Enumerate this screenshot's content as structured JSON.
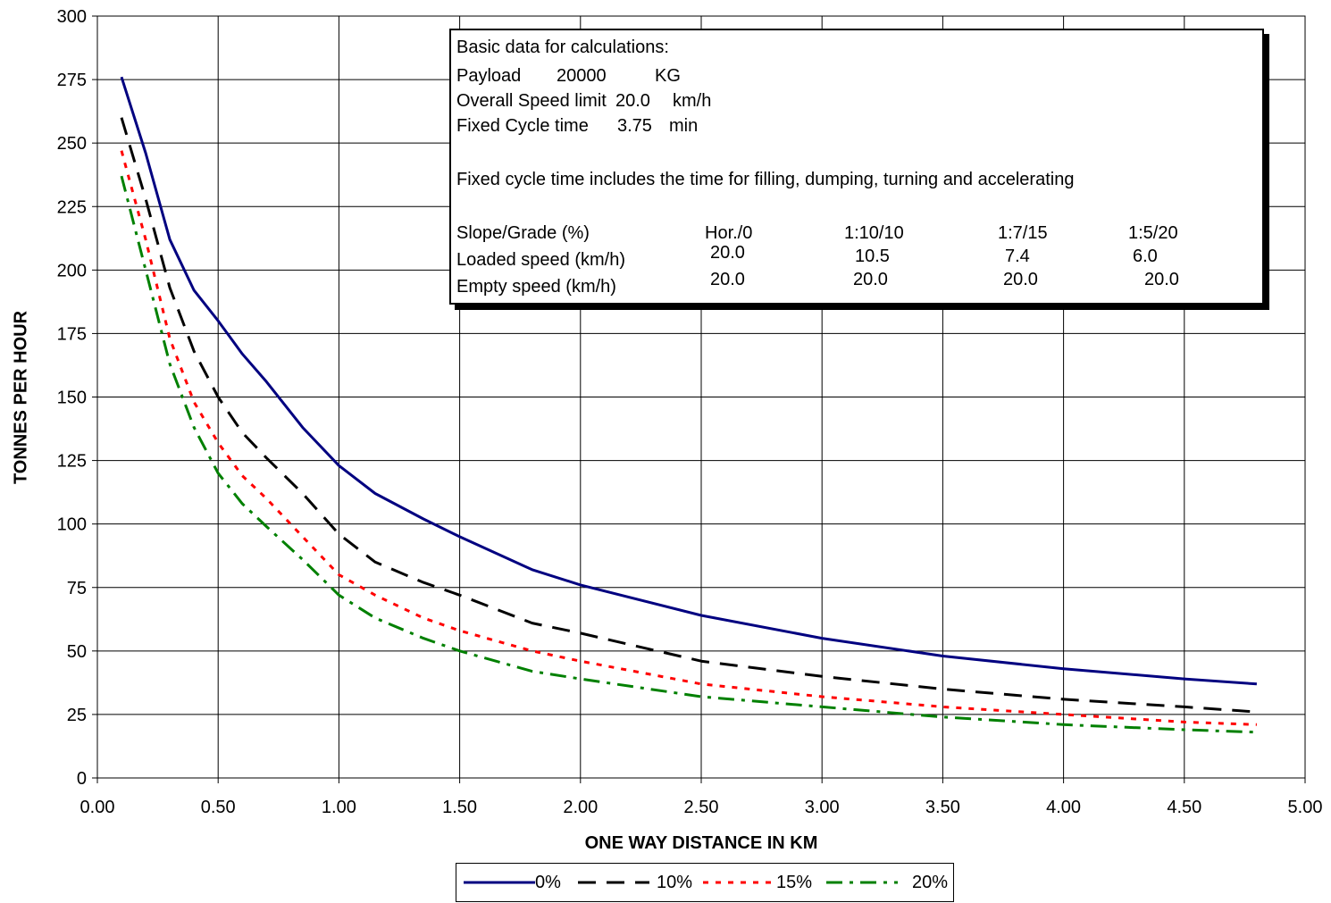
{
  "chart_data": {
    "type": "line",
    "xlabel": "ONE WAY DISTANCE IN KM",
    "ylabel": "TONNES PER HOUR",
    "xlim": [
      0,
      5
    ],
    "ylim": [
      0,
      300
    ],
    "xticks": [
      "0.00",
      "0.50",
      "1.00",
      "1.50",
      "2.00",
      "2.50",
      "3.00",
      "3.50",
      "4.00",
      "4.50",
      "5.00"
    ],
    "yticks": [
      "0",
      "25",
      "50",
      "75",
      "100",
      "125",
      "150",
      "175",
      "200",
      "225",
      "250",
      "275",
      "300"
    ],
    "grid": true,
    "legend_position": "bottom",
    "series": [
      {
        "name": "0%",
        "color": "#000080",
        "dash": "solid",
        "points": [
          [
            0.1,
            276
          ],
          [
            0.2,
            246
          ],
          [
            0.3,
            212
          ],
          [
            0.4,
            192
          ],
          [
            0.5,
            180
          ],
          [
            0.6,
            167
          ],
          [
            0.7,
            156
          ],
          [
            0.85,
            138
          ],
          [
            1.0,
            123
          ],
          [
            1.15,
            112
          ],
          [
            1.35,
            102
          ],
          [
            1.5,
            95
          ],
          [
            1.8,
            82
          ],
          [
            2.0,
            76
          ],
          [
            2.5,
            64
          ],
          [
            3.0,
            55
          ],
          [
            3.5,
            48
          ],
          [
            4.0,
            43
          ],
          [
            4.5,
            39
          ],
          [
            4.8,
            37
          ]
        ]
      },
      {
        "name": "10%",
        "color": "#000000",
        "dash": "long-dash",
        "points": [
          [
            0.1,
            260
          ],
          [
            0.2,
            228
          ],
          [
            0.3,
            193
          ],
          [
            0.4,
            168
          ],
          [
            0.5,
            150
          ],
          [
            0.6,
            136
          ],
          [
            0.7,
            126
          ],
          [
            0.85,
            112
          ],
          [
            1.0,
            96
          ],
          [
            1.15,
            85
          ],
          [
            1.35,
            77
          ],
          [
            1.5,
            72
          ],
          [
            1.8,
            61
          ],
          [
            2.0,
            57
          ],
          [
            2.5,
            46
          ],
          [
            3.0,
            40
          ],
          [
            3.5,
            35
          ],
          [
            4.0,
            31
          ],
          [
            4.5,
            28
          ],
          [
            4.8,
            26
          ]
        ]
      },
      {
        "name": "15%",
        "color": "#ff0000",
        "dash": "dotted",
        "points": [
          [
            0.1,
            247
          ],
          [
            0.2,
            212
          ],
          [
            0.3,
            173
          ],
          [
            0.4,
            148
          ],
          [
            0.5,
            132
          ],
          [
            0.6,
            119
          ],
          [
            0.7,
            110
          ],
          [
            0.85,
            95
          ],
          [
            1.0,
            80
          ],
          [
            1.15,
            72
          ],
          [
            1.35,
            63
          ],
          [
            1.5,
            58
          ],
          [
            1.8,
            50
          ],
          [
            2.0,
            46
          ],
          [
            2.5,
            37
          ],
          [
            3.0,
            32
          ],
          [
            3.5,
            28
          ],
          [
            4.0,
            25
          ],
          [
            4.5,
            22
          ],
          [
            4.8,
            21
          ]
        ]
      },
      {
        "name": "20%",
        "color": "#008000",
        "dash": "dash-dot",
        "points": [
          [
            0.1,
            237
          ],
          [
            0.2,
            200
          ],
          [
            0.3,
            163
          ],
          [
            0.4,
            138
          ],
          [
            0.5,
            120
          ],
          [
            0.6,
            108
          ],
          [
            0.7,
            99
          ],
          [
            0.85,
            86
          ],
          [
            1.0,
            72
          ],
          [
            1.15,
            63
          ],
          [
            1.35,
            55
          ],
          [
            1.5,
            50
          ],
          [
            1.8,
            42
          ],
          [
            2.0,
            39
          ],
          [
            2.5,
            32
          ],
          [
            3.0,
            28
          ],
          [
            3.5,
            24
          ],
          [
            4.0,
            21
          ],
          [
            4.5,
            19
          ],
          [
            4.8,
            18
          ]
        ]
      }
    ],
    "annotation": {
      "header": "Basic data for calculations:",
      "payload_label": "Payload",
      "payload_value": "20000",
      "payload_unit": "KG",
      "speed_limit_label": "Overall Speed limit",
      "speed_limit_value": "20.0",
      "speed_limit_unit": "km/h",
      "cycle_label": "Fixed Cycle time",
      "cycle_value": "3.75",
      "cycle_unit": "min",
      "note": "Fixed cycle time includes the time for filling, dumping, turning and accelerating",
      "table": {
        "row_labels": [
          "Slope/Grade (%)",
          "Loaded speed (km/h)",
          "Empty speed (km/h)"
        ],
        "columns": [
          "Hor./0",
          "1:10/10",
          "1:7/15",
          "1:5/20"
        ],
        "loaded": [
          "20.0",
          "10.5",
          "7.4",
          "6.0"
        ],
        "empty": [
          "20.0",
          "20.0",
          "20.0",
          "20.0"
        ]
      }
    }
  }
}
